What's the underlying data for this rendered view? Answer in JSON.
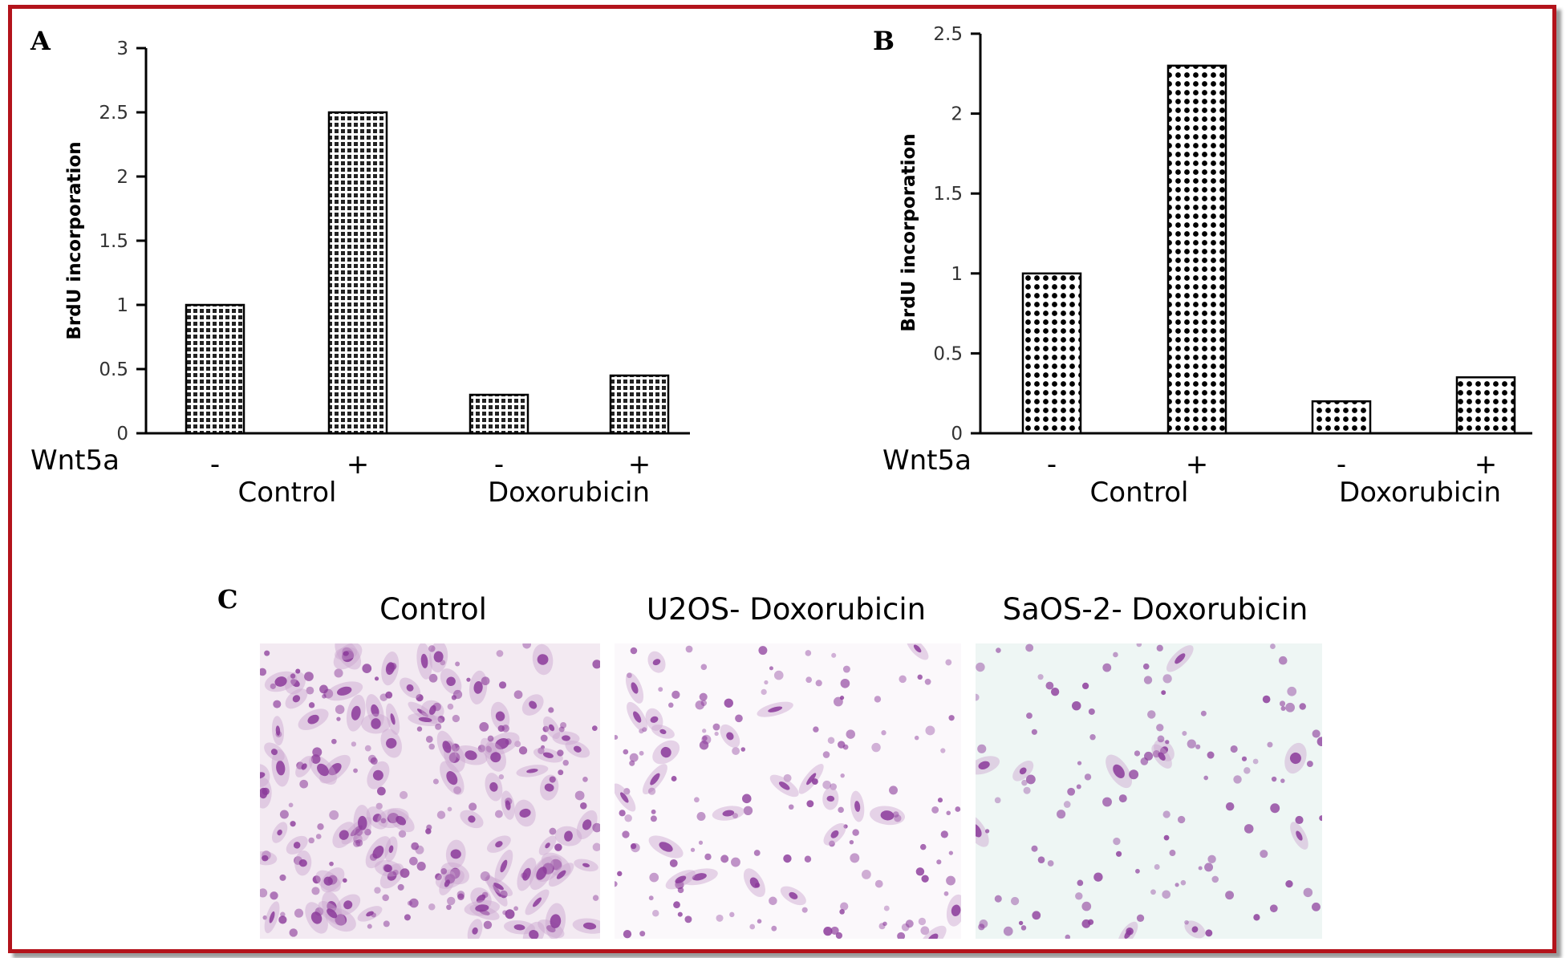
{
  "chart_data": [
    {
      "panel": "A",
      "type": "bar",
      "ylabel": "BrdU incorporation",
      "ylim": [
        0,
        3
      ],
      "yticks": [
        "0",
        "0.5",
        "1",
        "1.5",
        "2",
        "2.5",
        "3"
      ],
      "row_label": "Wnt5a",
      "categories": [
        "-",
        "+",
        "-",
        "+"
      ],
      "groups": [
        "Control",
        "Doxorubicin"
      ],
      "values": [
        1.0,
        2.5,
        0.3,
        0.45
      ]
    },
    {
      "panel": "B",
      "type": "bar",
      "ylabel": "BrdU incorporation",
      "ylim": [
        0,
        2.5
      ],
      "yticks": [
        "0",
        "0.5",
        "1",
        "1.5",
        "2",
        "2.5"
      ],
      "row_label": "Wnt5a",
      "categories": [
        "-",
        "+",
        "-",
        "+"
      ],
      "groups": [
        "Control",
        "Doxorubicin"
      ],
      "values": [
        1.0,
        2.3,
        0.2,
        0.35
      ]
    }
  ],
  "panel_c": {
    "letter": "C",
    "images": [
      {
        "title": "Control"
      },
      {
        "title": "U2OS- Doxorubicin"
      },
      {
        "title": "SaOS-2- Doxorubicin"
      }
    ]
  },
  "colors": {
    "frame": "#b3131b",
    "stain": "#8b3a9a"
  }
}
